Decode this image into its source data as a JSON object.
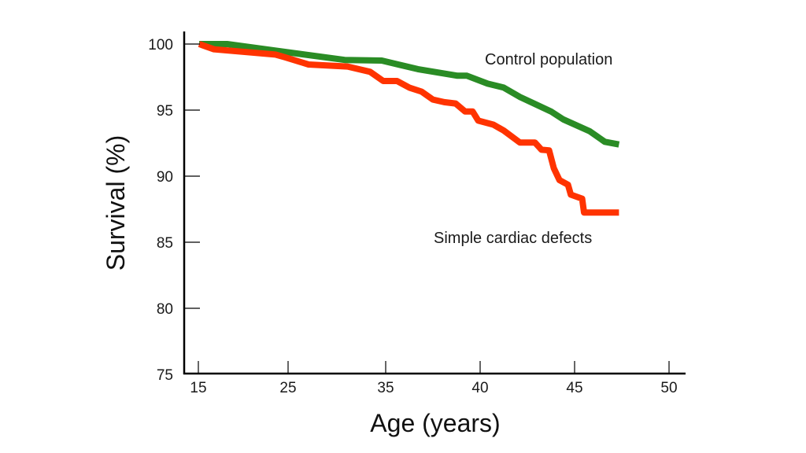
{
  "chart_data": {
    "type": "line",
    "title": "",
    "xlabel": "Age (years)",
    "ylabel": "Survival (%)",
    "xticks": [
      15,
      25,
      35,
      40,
      45,
      50
    ],
    "yticks": [
      75,
      80,
      85,
      90,
      95,
      100
    ],
    "xlim": [
      15,
      50
    ],
    "ylim": [
      75,
      100
    ],
    "grid": false,
    "legend": "inline labels",
    "series": [
      {
        "name": "Control population",
        "color": "#2a8c25",
        "x": [
          15.1,
          18.2,
          23.6,
          30.8,
          34.6,
          36.7,
          38.8,
          39.3,
          40.4,
          41.25,
          42.1,
          43.75,
          44.4,
          45.8,
          46.6,
          47.35
        ],
        "y": [
          100.0,
          100.0,
          99.5,
          98.8,
          98.75,
          98.1,
          97.6,
          97.6,
          97.0,
          96.7,
          96.0,
          94.9,
          94.3,
          93.4,
          92.6,
          92.4
        ]
      },
      {
        "name": "Simple cardiac defects",
        "color": "#ff3300",
        "x": [
          15.1,
          16.75,
          23.6,
          24.65,
          27.1,
          31.1,
          33.4,
          34.75,
          35.6,
          36.25,
          36.9,
          37.5,
          38.1,
          38.7,
          39.2,
          39.6,
          39.9,
          40.7,
          41.25,
          42.1,
          42.9,
          43.25,
          43.65,
          43.9,
          44.2,
          44.65,
          44.8,
          45.4,
          45.5,
          47.35
        ],
        "y": [
          100.0,
          99.6,
          99.2,
          99.0,
          98.45,
          98.3,
          97.9,
          97.2,
          97.2,
          96.7,
          96.4,
          95.8,
          95.6,
          95.5,
          94.9,
          94.9,
          94.2,
          93.9,
          93.45,
          92.55,
          92.55,
          92.0,
          91.95,
          90.6,
          89.7,
          89.35,
          88.6,
          88.3,
          87.25,
          87.25
        ]
      }
    ],
    "annotations": [
      {
        "text": "Control population",
        "series": 0
      },
      {
        "text": "Simple cardiac defects",
        "series": 1
      }
    ]
  }
}
